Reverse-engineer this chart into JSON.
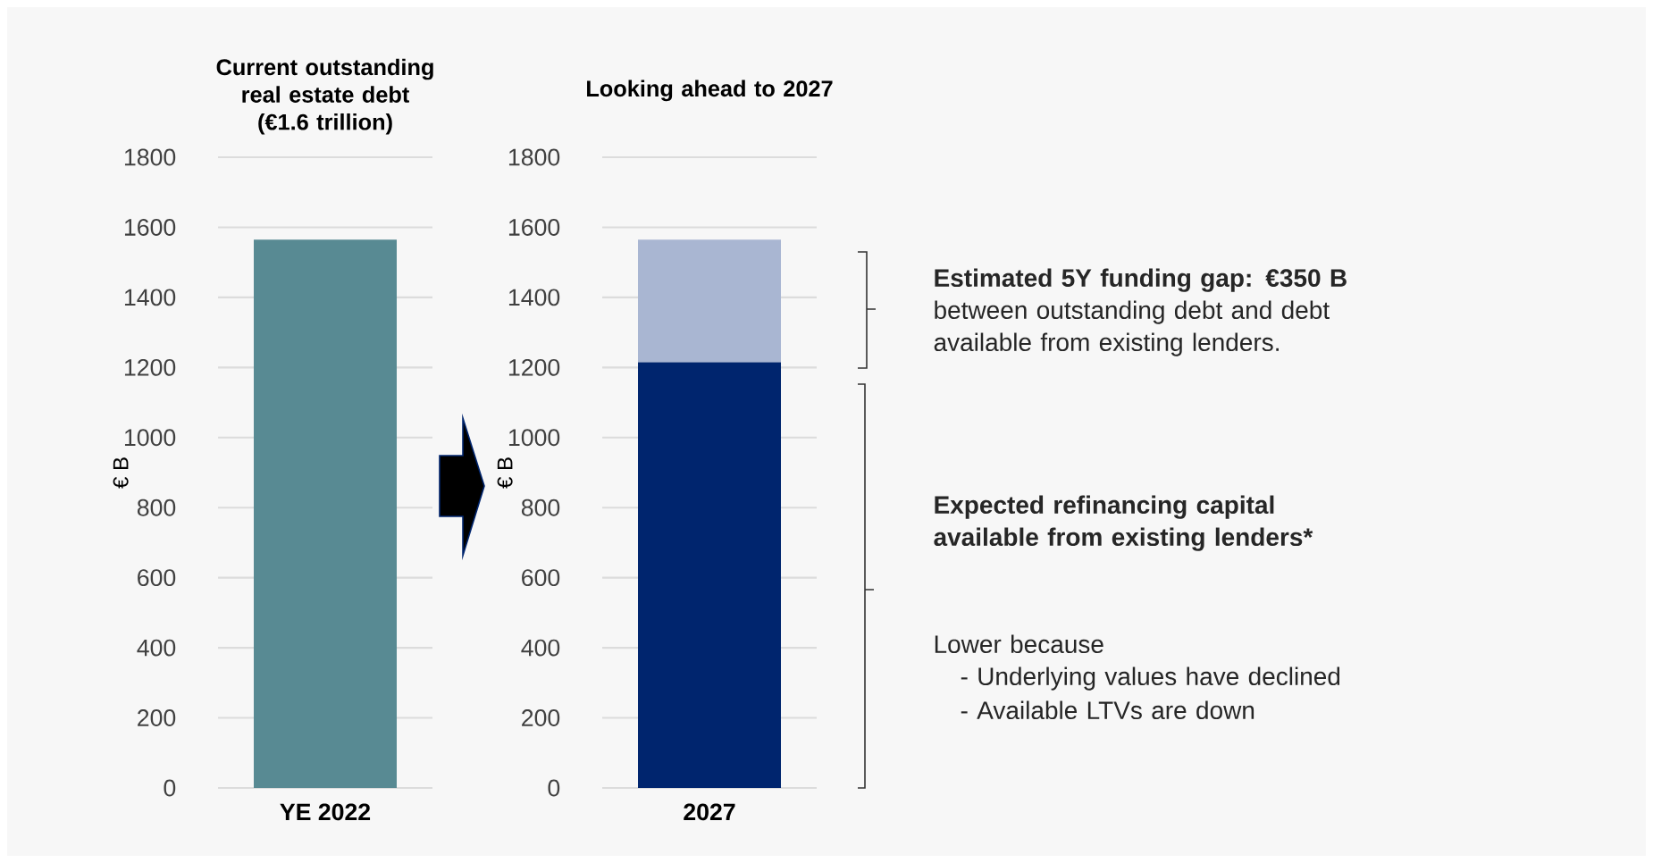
{
  "chart_data": [
    {
      "type": "bar",
      "title": "Current outstanding real estate debt (€1.6 trillion)",
      "categories": [
        "YE 2022"
      ],
      "values": [
        1565
      ],
      "color": "#588a93",
      "ylabel": "€ B",
      "ylim": [
        0,
        1800
      ],
      "yticks": [
        0,
        200,
        400,
        600,
        800,
        1000,
        1200,
        1400,
        1600,
        1800
      ],
      "grid": "y"
    },
    {
      "type": "bar",
      "stacked": true,
      "title": "Looking ahead to 2027",
      "categories": [
        "2027"
      ],
      "series": [
        {
          "color": "#00256e",
          "values": [
            1215
          ]
        },
        {
          "color": "#a9b6d2",
          "values": [
            350
          ]
        }
      ],
      "ylabel": "€ B",
      "ylim": [
        0,
        1800
      ],
      "yticks": [
        0,
        200,
        400,
        600,
        800,
        1000,
        1200,
        1400,
        1600,
        1800
      ],
      "grid": "y",
      "annotations": [
        "**Estimated 5Y funding gap: €350 B** between outstanding debt and debt available from existing lenders.",
        "Expected refinancing capital available from existing lenders*",
        "Lower because",
        "- Underlying values have declined",
        "- Available LTVs are down"
      ]
    }
  ]
}
